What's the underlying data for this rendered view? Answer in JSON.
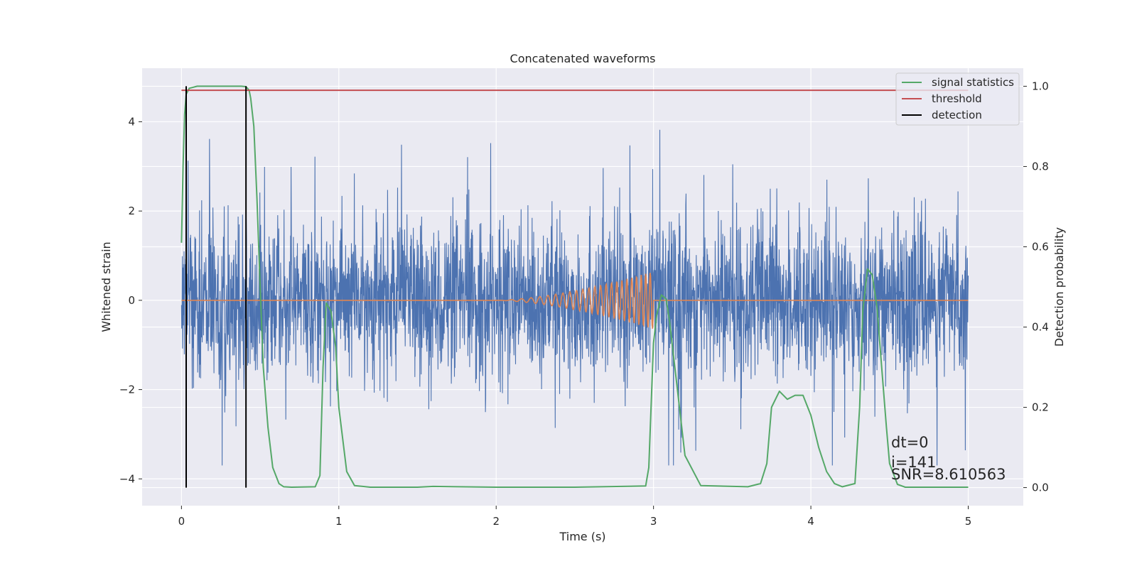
{
  "chart_data": {
    "type": "line",
    "title": "Concatenated waveforms",
    "xlabel": "Time (s)",
    "ylabel": "Whitened strain",
    "ylabel_right": "Detection probability",
    "xlim": [
      -0.25,
      5.35
    ],
    "ylim": [
      -4.6,
      5.2
    ],
    "ylim_right": [
      -0.045,
      1.045
    ],
    "x_ticks": [
      0,
      1,
      2,
      3,
      4,
      5
    ],
    "y_ticks": [
      -4,
      -2,
      0,
      2,
      4
    ],
    "y_ticks_right": [
      0.0,
      0.2,
      0.4,
      0.6,
      0.8,
      1.0
    ],
    "y_tick_labels": [
      "−4",
      "−2",
      "0",
      "2",
      "4"
    ],
    "y_tick_labels_right": [
      "0.0",
      "0.2",
      "0.4",
      "0.6",
      "0.8",
      "1.0"
    ],
    "grid": true,
    "legend": {
      "position": "top-right",
      "entries": [
        "signal statistics",
        "threshold",
        "detection"
      ]
    },
    "colors": {
      "background": "#eaeaf2",
      "grid": "#ffffff",
      "strain": "#4c72b0",
      "injected_waveform": "#dd8452",
      "signal_statistics": "#55a868",
      "threshold": "#c44e52",
      "detection": "#000000"
    },
    "series": [
      {
        "axis": "left",
        "color": "#4c72b0",
        "x_range": [
          0,
          5
        ],
        "sample_rate_hz": 2048,
        "amplitude_typical": [
          -2.0,
          2.3
        ],
        "amplitude_peaks": [
          -3.7,
          4.0
        ]
      },
      {
        "axis": "left",
        "color": "#dd8452",
        "chirp_x_range": [
          2.0,
          3.0
        ],
        "chirp_peak_amplitude": 0.65,
        "x_range": [
          0,
          5
        ]
      },
      {
        "name": "signal statistics",
        "axis": "right",
        "color": "#55a868",
        "x": [
          0.0,
          0.01,
          0.02,
          0.03,
          0.05,
          0.1,
          0.2,
          0.38,
          0.41,
          0.43,
          0.44,
          0.46,
          0.48,
          0.5,
          0.52,
          0.55,
          0.58,
          0.62,
          0.65,
          0.7,
          0.85,
          0.88,
          0.9,
          0.92,
          0.95,
          0.98,
          1.0,
          1.05,
          1.1,
          1.2,
          1.5,
          1.6,
          2.0,
          2.5,
          2.95,
          2.97,
          3.0,
          3.02,
          3.05,
          3.08,
          3.1,
          3.15,
          3.2,
          3.3,
          3.6,
          3.68,
          3.72,
          3.75,
          3.8,
          3.85,
          3.9,
          3.95,
          4.0,
          4.05,
          4.1,
          4.15,
          4.2,
          4.28,
          4.31,
          4.33,
          4.36,
          4.39,
          4.42,
          4.45,
          4.48,
          4.5,
          4.55,
          4.6,
          5.0
        ],
        "y": [
          0.61,
          0.8,
          0.93,
          0.98,
          0.995,
          1.0,
          1.0,
          1.0,
          0.999,
          0.99,
          0.97,
          0.9,
          0.72,
          0.5,
          0.3,
          0.15,
          0.05,
          0.01,
          0.002,
          0.001,
          0.002,
          0.03,
          0.3,
          0.46,
          0.44,
          0.35,
          0.2,
          0.04,
          0.005,
          0.001,
          0.001,
          0.003,
          0.001,
          0.001,
          0.004,
          0.05,
          0.36,
          0.43,
          0.48,
          0.47,
          0.42,
          0.25,
          0.08,
          0.005,
          0.002,
          0.01,
          0.06,
          0.2,
          0.24,
          0.22,
          0.23,
          0.23,
          0.18,
          0.1,
          0.04,
          0.01,
          0.002,
          0.01,
          0.2,
          0.44,
          0.545,
          0.53,
          0.45,
          0.3,
          0.15,
          0.06,
          0.008,
          0.001,
          0.001
        ]
      },
      {
        "name": "threshold",
        "axis": "right",
        "color": "#c44e52",
        "x": [
          0,
          5
        ],
        "y": [
          0.99,
          0.99
        ]
      },
      {
        "name": "detection",
        "axis": "right",
        "color": "#000000",
        "x": [
          0.03,
          0.41
        ],
        "y_range": [
          0.0,
          1.0
        ]
      }
    ],
    "annotations": [
      "dt=0",
      "i=141",
      "SNR=8.610563"
    ]
  }
}
